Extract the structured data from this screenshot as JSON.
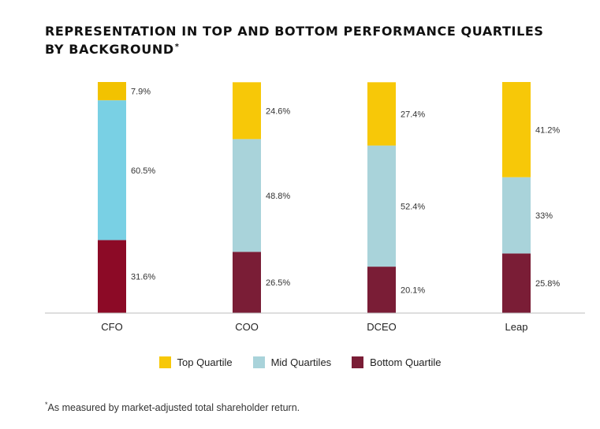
{
  "title": "REPRESENTATION IN TOP AND BOTTOM PERFORMANCE QUARTILES BY BACKGROUND",
  "title_mark": "*",
  "footnote": {
    "mark": "*",
    "text": "As measured by market-adjusted total shareholder return."
  },
  "colors": {
    "top": "#f7c808",
    "mid_cfo": "#79d0e4",
    "mid": "#a9d3da",
    "bottom_cfo": "#8c0a26",
    "bottom": "#7a1d36",
    "top_cfo": "#f2c200"
  },
  "legend": [
    {
      "label": "Top Quartile",
      "color": "#f7c808"
    },
    {
      "label": "Mid Quartiles",
      "color": "#a9d3da"
    },
    {
      "label": "Bottom Quartile",
      "color": "#7a1d36"
    }
  ],
  "chart_data": {
    "type": "bar",
    "stacked": true,
    "categories": [
      "CFO",
      "COO",
      "DCEO",
      "Leap"
    ],
    "series": [
      {
        "name": "Bottom Quartile",
        "values": [
          31.6,
          26.5,
          20.1,
          25.8
        ],
        "labels": [
          "31.6%",
          "26.5%",
          "20.1%",
          "25.8%"
        ]
      },
      {
        "name": "Mid Quartiles",
        "values": [
          60.5,
          48.8,
          52.4,
          33
        ],
        "labels": [
          "60.5%",
          "48.8%",
          "52.4%",
          "33%"
        ]
      },
      {
        "name": "Top Quartile",
        "values": [
          7.9,
          24.6,
          27.4,
          41.2
        ],
        "labels": [
          "7.9%",
          "24.6%",
          "27.4%",
          "41.2%"
        ]
      }
    ],
    "ylim": [
      0,
      100
    ],
    "grid": false,
    "legend_position": "bottom"
  }
}
